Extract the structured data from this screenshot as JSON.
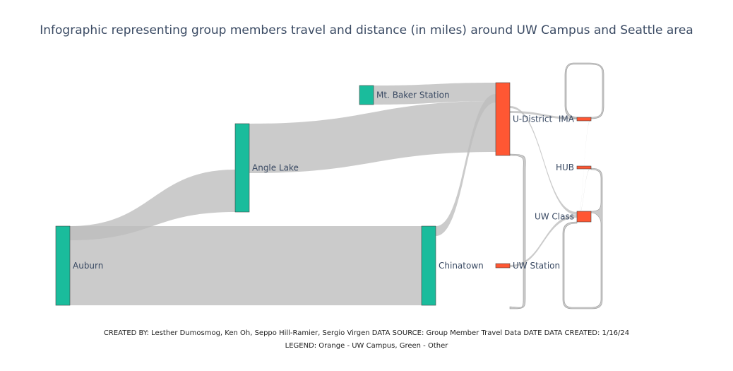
{
  "chart_data": {
    "type": "sankey",
    "title": "Infographic representing group members travel and distance (in miles) around UW Campus and Seattle area",
    "nodes": [
      {
        "id": "auburn",
        "label": "Auburn",
        "color": "#1abc9c"
      },
      {
        "id": "angle_lake",
        "label": "Angle Lake",
        "color": "#1abc9c"
      },
      {
        "id": "mt_baker",
        "label": "Mt. Baker Station",
        "color": "#1abc9c"
      },
      {
        "id": "chinatown",
        "label": "Chinatown",
        "color": "#1abc9c"
      },
      {
        "id": "u_district",
        "label": "U-District",
        "color": "#ff5733"
      },
      {
        "id": "uw_station",
        "label": "UW Station",
        "color": "#ff5733"
      },
      {
        "id": "ima",
        "label": "IMA",
        "color": "#ff5733"
      },
      {
        "id": "hub",
        "label": "HUB",
        "color": "#ff5733"
      },
      {
        "id": "uw_class",
        "label": "UW Class",
        "color": "#ff5733"
      }
    ],
    "links": [
      {
        "source": "auburn",
        "target": "angle_lake",
        "value": 5
      },
      {
        "source": "auburn",
        "target": "chinatown",
        "value": 18
      },
      {
        "source": "angle_lake",
        "target": "u_district",
        "value": 20
      },
      {
        "source": "mt_baker",
        "target": "u_district",
        "value": 4.5
      },
      {
        "source": "chinatown",
        "target": "u_district",
        "value": 2
      },
      {
        "source": "u_district",
        "target": "ima",
        "value": 0.5
      },
      {
        "source": "u_district",
        "target": "uw_class",
        "value": 0.5
      },
      {
        "source": "uw_station",
        "target": "uw_class",
        "value": 0.7
      },
      {
        "source": "u_district",
        "target": "u_district",
        "value": 2
      },
      {
        "source": "ima",
        "target": "uw_class",
        "value": 0.2
      },
      {
        "source": "hub",
        "target": "uw_class",
        "value": 0.1
      },
      {
        "source": "ima",
        "target": "ima",
        "value": 2
      },
      {
        "source": "uw_class",
        "target": "uw_class",
        "value": 2
      }
    ],
    "link_color": "#bdbdbd",
    "node_outline_color": "#444444"
  },
  "footer": {
    "credits": "CREATED BY: Lesther Dumosmog, Ken Oh, Seppo Hill-Ramier, Sergio Virgen DATA SOURCE: Group Member Travel Data DATE DATA CREATED: 1/16/24",
    "legend_note": "LEGEND: Orange - UW Campus, Green - Other"
  }
}
